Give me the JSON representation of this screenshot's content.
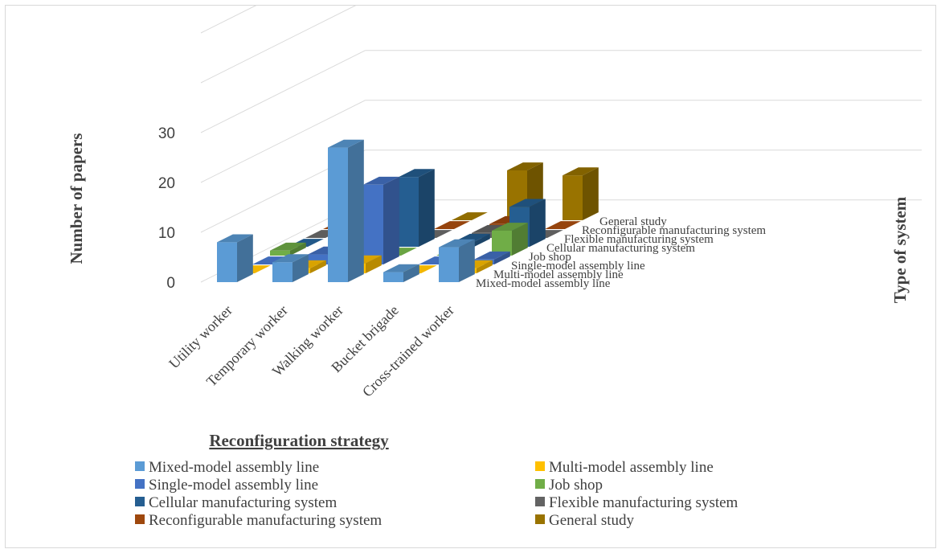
{
  "chart_data": {
    "type": "bar",
    "variant": "3d-column",
    "categories": [
      "Utility worker",
      "Temporary worker",
      "Walking worker",
      "Bucket brigade",
      "Cross-trained worker"
    ],
    "series": [
      {
        "name": "Mixed-model assembly line",
        "values": [
          8,
          4,
          27,
          2,
          7
        ],
        "color": "#5b9bd5"
      },
      {
        "name": "Multi-model assembly line",
        "values": [
          0,
          1,
          2,
          0,
          1
        ],
        "color": "#ffc000"
      },
      {
        "name": "Single-model assembly line",
        "values": [
          0,
          2,
          16,
          0,
          1
        ],
        "color": "#4472c4"
      },
      {
        "name": "Job shop",
        "values": [
          1,
          0,
          0,
          0,
          5
        ],
        "color": "#70ad47"
      },
      {
        "name": "Cellular manufacturing system",
        "values": [
          0,
          0,
          14,
          1,
          8
        ],
        "color": "#255e91"
      },
      {
        "name": "Flexible manufacturing system",
        "values": [
          0,
          0,
          0,
          1,
          0
        ],
        "color": "#636363"
      },
      {
        "name": "Reconfigurable manufacturing system",
        "values": [
          0,
          0,
          0,
          1,
          0
        ],
        "color": "#9e480e"
      },
      {
        "name": "General study",
        "values": [
          0,
          0,
          0,
          10,
          9
        ],
        "color": "#997300"
      }
    ],
    "y_ticks": [
      "0",
      "10",
      "20",
      "30"
    ],
    "ylim": [
      0,
      30
    ],
    "xlabel": "Reconfiguration strategy",
    "ylabel": "Number of papers",
    "zlabel": "Type of system",
    "legend_position": "bottom",
    "grid": true
  }
}
